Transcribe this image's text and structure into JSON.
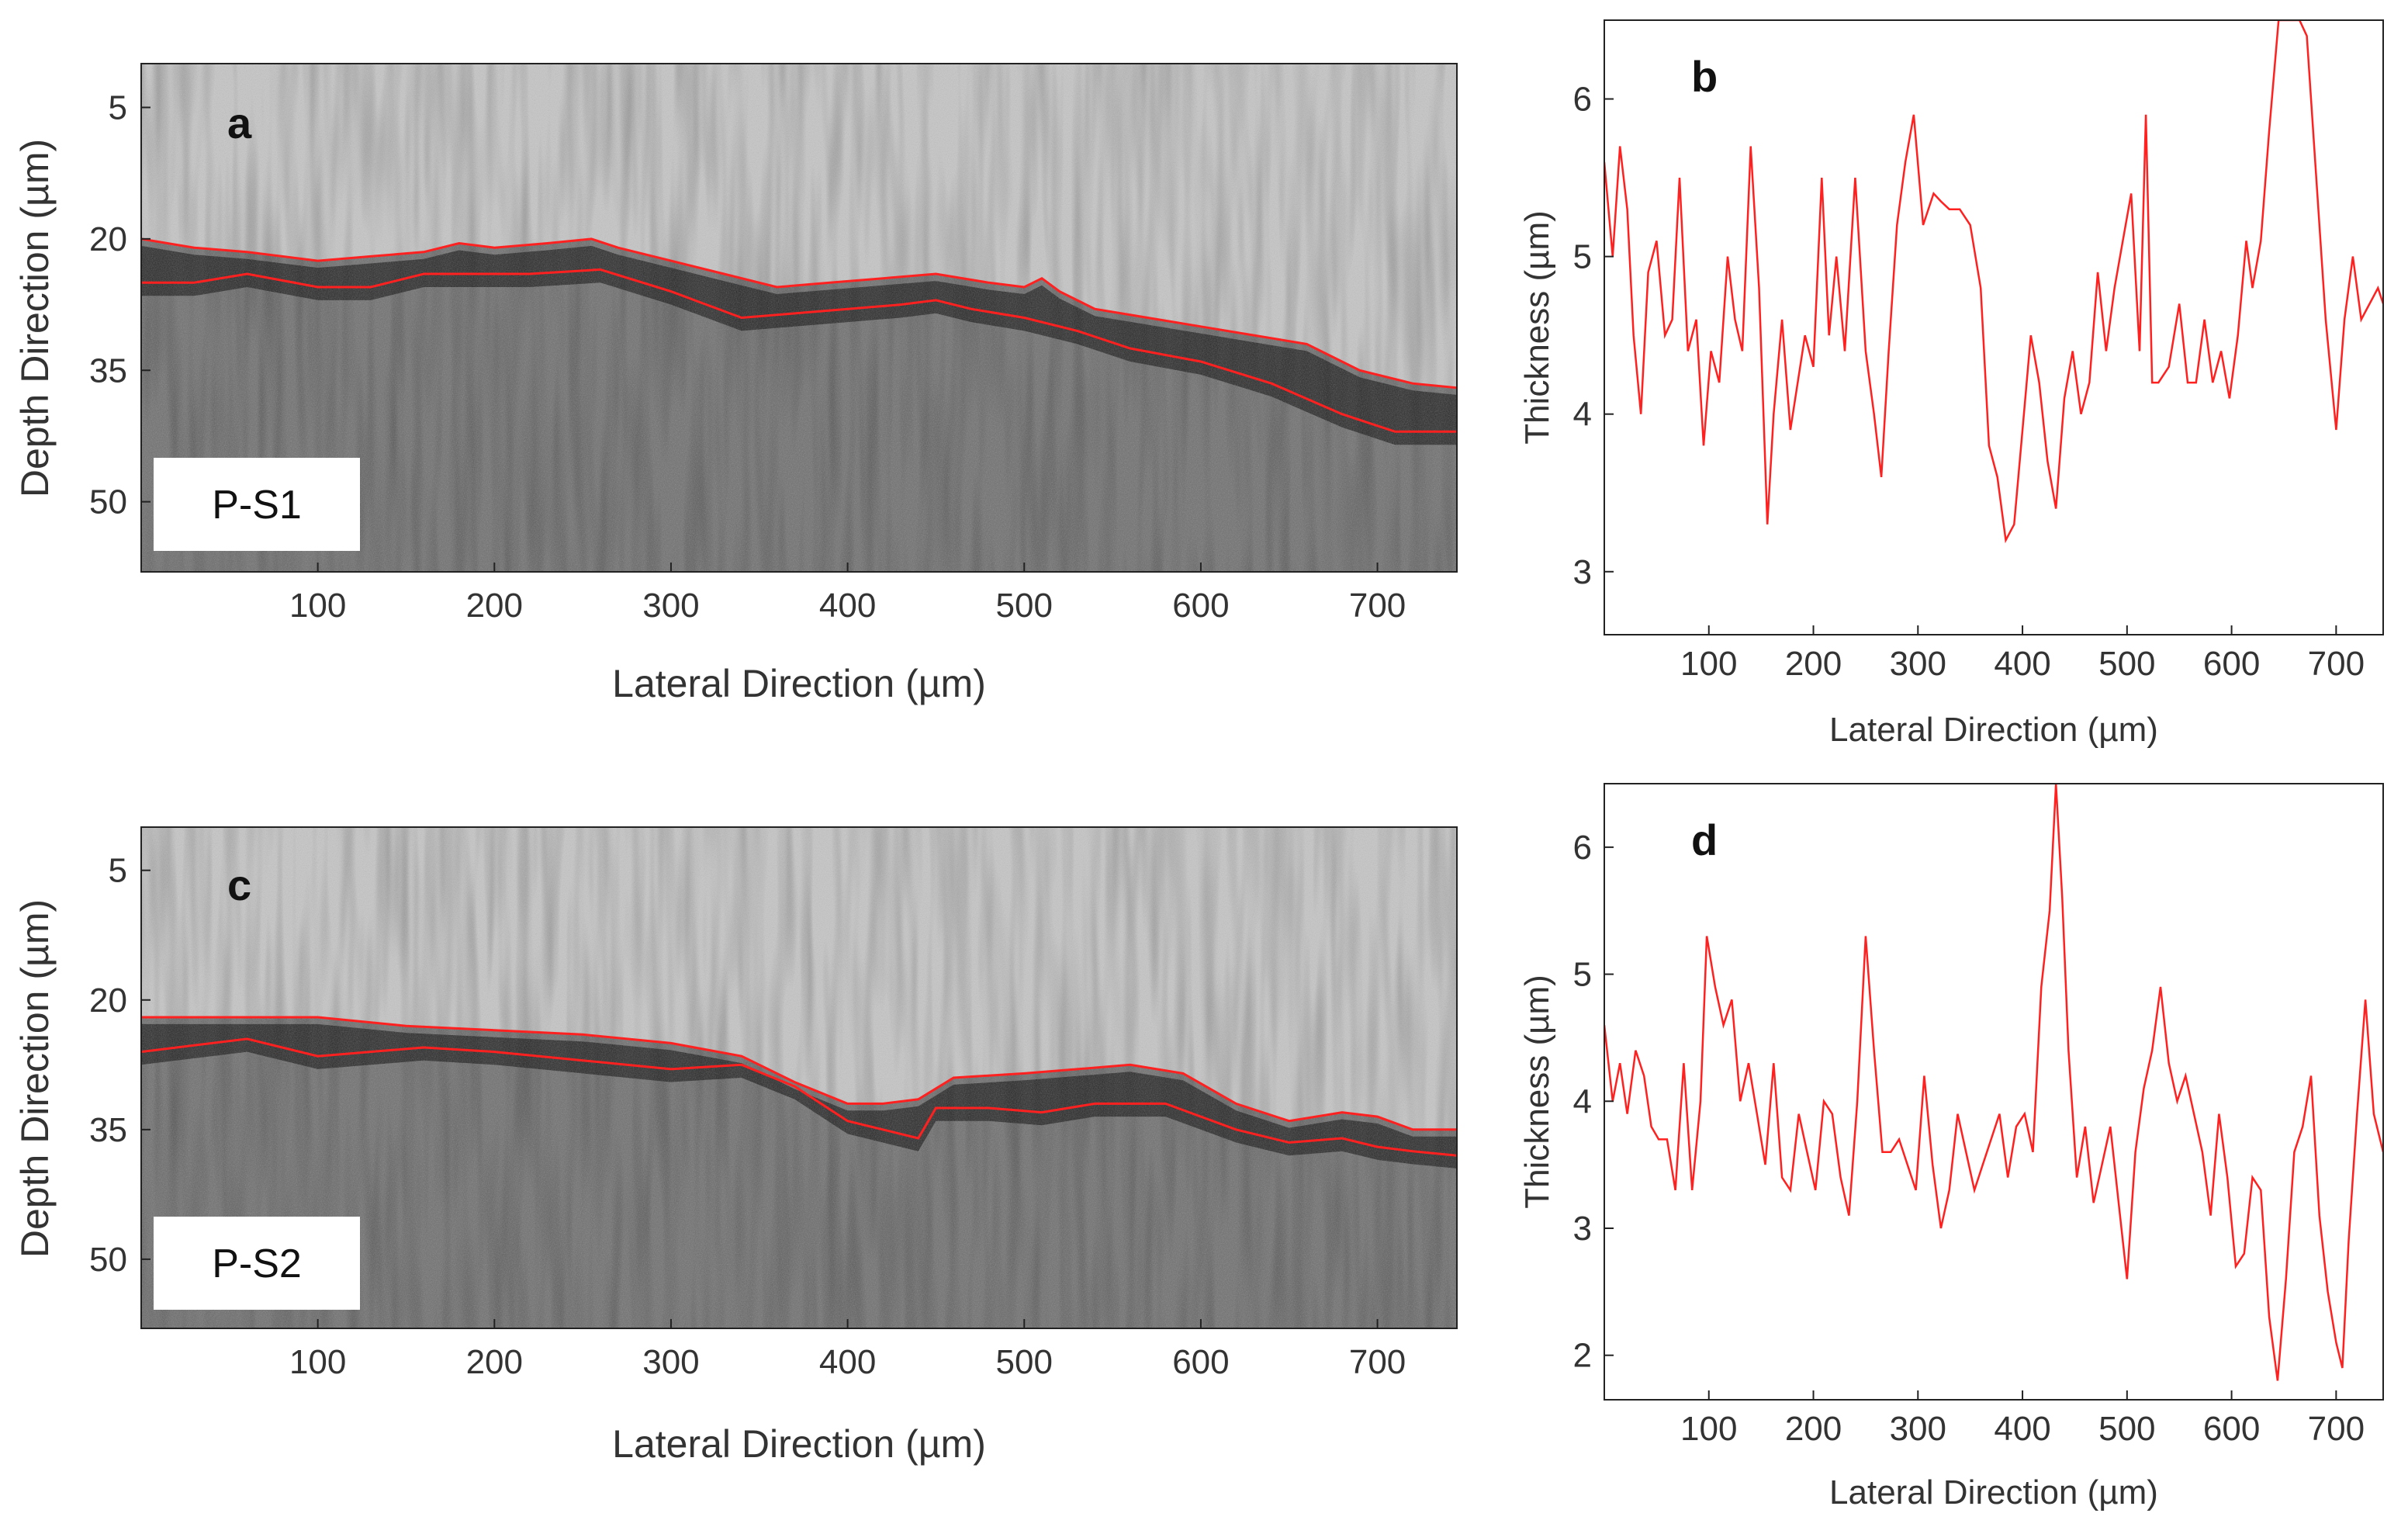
{
  "figure": {
    "panels": [
      "a",
      "b",
      "c",
      "d"
    ]
  },
  "chart_data": [
    {
      "panel": "a",
      "type": "heatmap",
      "description_label": "P-S1",
      "xlabel": "Lateral Direction (µm)",
      "ylabel": "Depth Direction (µm)",
      "xlim": [
        0,
        745
      ],
      "ylim": [
        0,
        58
      ],
      "x_ticks": [
        100,
        200,
        300,
        400,
        500,
        600,
        700
      ],
      "y_ticks": [
        5,
        20,
        35,
        50
      ],
      "colors": {
        "boundary": "#ff2020"
      },
      "series": [
        {
          "name": "upper boundary",
          "x": [
            0,
            30,
            60,
            100,
            130,
            160,
            180,
            200,
            230,
            255,
            270,
            300,
            330,
            360,
            390,
            420,
            450,
            480,
            500,
            510,
            520,
            540,
            570,
            600,
            630,
            660,
            690,
            720,
            745
          ],
          "y": [
            20,
            21,
            21.5,
            22.5,
            22,
            21.5,
            20.5,
            21,
            20.5,
            20,
            21,
            22.5,
            24,
            25.5,
            25,
            24.5,
            24,
            25,
            25.5,
            24.5,
            26,
            28,
            29,
            30,
            31,
            32,
            35,
            36.5,
            37
          ]
        },
        {
          "name": "lower boundary",
          "x": [
            0,
            30,
            60,
            100,
            130,
            160,
            190,
            220,
            260,
            300,
            340,
            370,
            400,
            430,
            450,
            470,
            500,
            530,
            560,
            600,
            640,
            680,
            710,
            745
          ],
          "y": [
            25,
            25,
            24,
            25.5,
            25.5,
            24,
            24,
            24,
            23.5,
            26,
            29,
            28.5,
            28,
            27.5,
            27,
            28,
            29,
            30.5,
            32.5,
            34,
            36.5,
            40,
            42,
            42
          ]
        }
      ]
    },
    {
      "panel": "b",
      "type": "line",
      "xlabel": "Lateral Direction (µm)",
      "ylabel": "Thickness (µm)",
      "xlim": [
        0,
        745
      ],
      "ylim": [
        2.6,
        6.5
      ],
      "x_ticks": [
        100,
        200,
        300,
        400,
        500,
        600,
        700
      ],
      "y_ticks": [
        3,
        4,
        5,
        6
      ],
      "colors": {
        "line": "#ff2020"
      },
      "series": [
        {
          "name": "thickness",
          "x": [
            0,
            8,
            15,
            22,
            28,
            35,
            42,
            50,
            58,
            65,
            72,
            80,
            88,
            95,
            102,
            110,
            118,
            125,
            132,
            140,
            148,
            156,
            162,
            170,
            178,
            185,
            192,
            200,
            208,
            215,
            222,
            230,
            240,
            250,
            258,
            265,
            272,
            280,
            288,
            296,
            305,
            315,
            322,
            330,
            340,
            350,
            360,
            368,
            376,
            384,
            392,
            400,
            408,
            416,
            424,
            432,
            440,
            448,
            456,
            464,
            472,
            480,
            488,
            496,
            504,
            512,
            518,
            524,
            530,
            540,
            550,
            558,
            566,
            574,
            582,
            590,
            598,
            606,
            614,
            620,
            628,
            636,
            645,
            655,
            665,
            672,
            680,
            690,
            700,
            708,
            716,
            724,
            732,
            740,
            745
          ],
          "y": [
            5.6,
            5.0,
            5.7,
            5.3,
            4.5,
            4.0,
            4.9,
            5.1,
            4.5,
            4.6,
            5.5,
            4.4,
            4.6,
            3.8,
            4.4,
            4.2,
            5.0,
            4.6,
            4.4,
            5.7,
            4.8,
            3.3,
            4.0,
            4.6,
            3.9,
            4.2,
            4.5,
            4.3,
            5.5,
            4.5,
            5.0,
            4.4,
            5.5,
            4.4,
            4.0,
            3.6,
            4.4,
            5.2,
            5.6,
            5.9,
            5.2,
            5.4,
            5.35,
            5.3,
            5.3,
            5.2,
            4.8,
            3.8,
            3.6,
            3.2,
            3.3,
            3.9,
            4.5,
            4.2,
            3.7,
            3.4,
            4.1,
            4.4,
            4.0,
            4.2,
            4.9,
            4.4,
            4.8,
            5.1,
            5.4,
            4.4,
            5.9,
            4.2,
            4.2,
            4.3,
            4.7,
            4.2,
            4.2,
            4.6,
            4.2,
            4.4,
            4.1,
            4.5,
            5.1,
            4.8,
            5.1,
            5.8,
            6.5,
            6.5,
            6.5,
            6.4,
            5.6,
            4.6,
            3.9,
            4.6,
            5.0,
            4.6,
            4.7,
            4.8,
            4.7
          ]
        }
      ]
    },
    {
      "panel": "c",
      "type": "heatmap",
      "description_label": "P-S2",
      "xlabel": "Lateral Direction (µm)",
      "ylabel": "Depth Direction (µm)",
      "xlim": [
        0,
        745
      ],
      "ylim": [
        0,
        58
      ],
      "x_ticks": [
        100,
        200,
        300,
        400,
        500,
        600,
        700
      ],
      "y_ticks": [
        5,
        20,
        35,
        50
      ],
      "colors": {
        "boundary": "#ff2020"
      },
      "series": [
        {
          "name": "upper boundary",
          "x": [
            0,
            50,
            100,
            150,
            200,
            250,
            300,
            340,
            370,
            400,
            420,
            440,
            460,
            500,
            530,
            560,
            590,
            620,
            650,
            680,
            700,
            720,
            745
          ],
          "y": [
            22,
            22,
            22,
            23,
            23.5,
            24,
            25,
            26.5,
            29.5,
            32,
            32,
            31.5,
            29,
            28.5,
            28,
            27.5,
            28.5,
            32,
            34,
            33,
            33.5,
            35,
            35
          ]
        },
        {
          "name": "lower boundary",
          "x": [
            0,
            60,
            100,
            160,
            200,
            250,
            300,
            340,
            370,
            400,
            420,
            440,
            450,
            480,
            510,
            540,
            580,
            620,
            650,
            680,
            700,
            720,
            745
          ],
          "y": [
            26,
            24.5,
            26.5,
            25.5,
            26,
            27,
            28,
            27.5,
            30,
            34,
            35,
            36,
            32.5,
            32.5,
            33,
            32,
            32,
            35,
            36.5,
            36,
            37,
            37.5,
            38
          ]
        }
      ]
    },
    {
      "panel": "d",
      "type": "line",
      "xlabel": "Lateral Direction (µm)",
      "ylabel": "Thickness (µm)",
      "xlim": [
        0,
        745
      ],
      "ylim": [
        1.65,
        6.5
      ],
      "x_ticks": [
        100,
        200,
        300,
        400,
        500,
        600,
        700
      ],
      "y_ticks": [
        2,
        3,
        4,
        5,
        6
      ],
      "colors": {
        "line": "#ff2020"
      },
      "series": [
        {
          "name": "thickness",
          "x": [
            0,
            8,
            15,
            22,
            30,
            38,
            45,
            52,
            60,
            68,
            76,
            84,
            92,
            98,
            106,
            114,
            122,
            130,
            138,
            146,
            154,
            162,
            170,
            178,
            186,
            194,
            202,
            210,
            218,
            226,
            234,
            242,
            250,
            258,
            266,
            274,
            282,
            290,
            298,
            306,
            314,
            322,
            330,
            338,
            346,
            354,
            362,
            370,
            378,
            386,
            394,
            402,
            410,
            418,
            426,
            432,
            438,
            444,
            452,
            460,
            468,
            476,
            484,
            492,
            500,
            508,
            516,
            524,
            532,
            540,
            548,
            556,
            564,
            572,
            580,
            588,
            596,
            604,
            612,
            620,
            628,
            636,
            644,
            652,
            660,
            668,
            676,
            684,
            692,
            700,
            706,
            712,
            720,
            728,
            736,
            745
          ],
          "y": [
            4.6,
            4.0,
            4.3,
            3.9,
            4.4,
            4.2,
            3.8,
            3.7,
            3.7,
            3.3,
            4.3,
            3.3,
            4.0,
            5.3,
            4.9,
            4.6,
            4.8,
            4.0,
            4.3,
            3.9,
            3.5,
            4.3,
            3.4,
            3.3,
            3.9,
            3.6,
            3.3,
            4.0,
            3.9,
            3.4,
            3.1,
            4.0,
            5.3,
            4.4,
            3.6,
            3.6,
            3.7,
            3.5,
            3.3,
            4.2,
            3.5,
            3.0,
            3.3,
            3.9,
            3.6,
            3.3,
            3.5,
            3.7,
            3.9,
            3.4,
            3.8,
            3.9,
            3.6,
            4.9,
            5.5,
            6.5,
            5.6,
            4.4,
            3.4,
            3.8,
            3.2,
            3.5,
            3.8,
            3.2,
            2.6,
            3.6,
            4.1,
            4.4,
            4.9,
            4.3,
            4.0,
            4.2,
            3.9,
            3.6,
            3.1,
            3.9,
            3.4,
            2.7,
            2.8,
            3.4,
            3.3,
            2.3,
            1.8,
            2.6,
            3.6,
            3.8,
            4.2,
            3.1,
            2.5,
            2.1,
            1.9,
            2.9,
            3.9,
            4.8,
            3.9,
            3.6
          ]
        }
      ]
    }
  ]
}
